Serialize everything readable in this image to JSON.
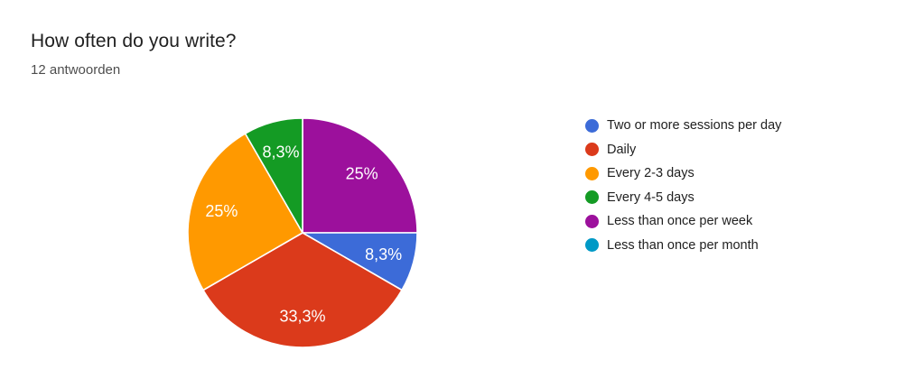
{
  "header": {
    "title": "How often do you write?",
    "subtitle": "12 antwoorden"
  },
  "chart_data": {
    "type": "pie",
    "title": "How often do you write?",
    "subtitle": "12 antwoorden",
    "total_answers": 12,
    "legend_position": "right",
    "categories": [
      "Two or more sessions per day",
      "Daily",
      "Every 2-3 days",
      "Every 4-5 days",
      "Less than once per week",
      "Less than once per month"
    ],
    "values": [
      1,
      4,
      3,
      1,
      3,
      0
    ],
    "percents": [
      8.3,
      33.3,
      25,
      8.3,
      25,
      0
    ],
    "percent_labels": [
      "8,3%",
      "33,3%",
      "25%",
      "8,3%",
      "25%",
      ""
    ],
    "colors": [
      "#3C6BD8",
      "#DB3A1B",
      "#FF9900",
      "#149B24",
      "#9C109C",
      "#0099C6"
    ],
    "draw": {
      "start_angle_deg": 0,
      "direction": "clockwise",
      "order_clockwise_from_top": [
        4,
        0,
        1,
        2,
        3
      ],
      "label_color": "#FFFFFF",
      "label_radius_ratio": 0.73,
      "slice_border_color": "#FFFFFF"
    }
  }
}
